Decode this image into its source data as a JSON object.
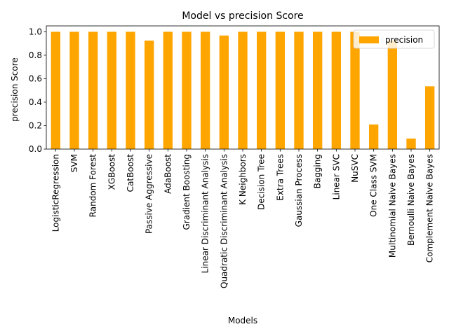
{
  "chart_data": {
    "type": "bar",
    "title": "Model vs precision Score",
    "xlabel": "Models",
    "ylabel": "precision Score",
    "ylim": [
      0.0,
      1.05
    ],
    "yticks": [
      "0.0",
      "0.2",
      "0.4",
      "0.6",
      "0.8",
      "1.0"
    ],
    "grid": false,
    "legend_position": "top-right",
    "series": [
      {
        "name": "precision",
        "color": "#ffa500",
        "values": [
          1.0,
          1.0,
          1.0,
          1.0,
          1.0,
          0.925,
          1.0,
          1.0,
          1.0,
          0.968,
          1.0,
          1.0,
          1.0,
          1.0,
          1.0,
          1.0,
          1.0,
          0.21,
          0.925,
          0.09,
          0.535
        ]
      }
    ],
    "categories": [
      "LogisticRegression",
      "SVM",
      "Random Forest",
      "XGBoost",
      "CatBoost",
      "Passive Aggressive",
      "AdaBoost",
      "Gradient Boosting",
      "Linear Discriminant Analysis",
      "Quadratic Discriminant Analysis",
      "K Neighbors",
      "Decision Tree",
      "Extra Trees",
      "Gaussian Process",
      "Bagging",
      "Linear SVC",
      "NuSVC",
      "One Class SVM",
      "Multinomial Naive Bayes",
      "Bernoulli Naive Bayes",
      "Complement Naive Bayes"
    ]
  }
}
